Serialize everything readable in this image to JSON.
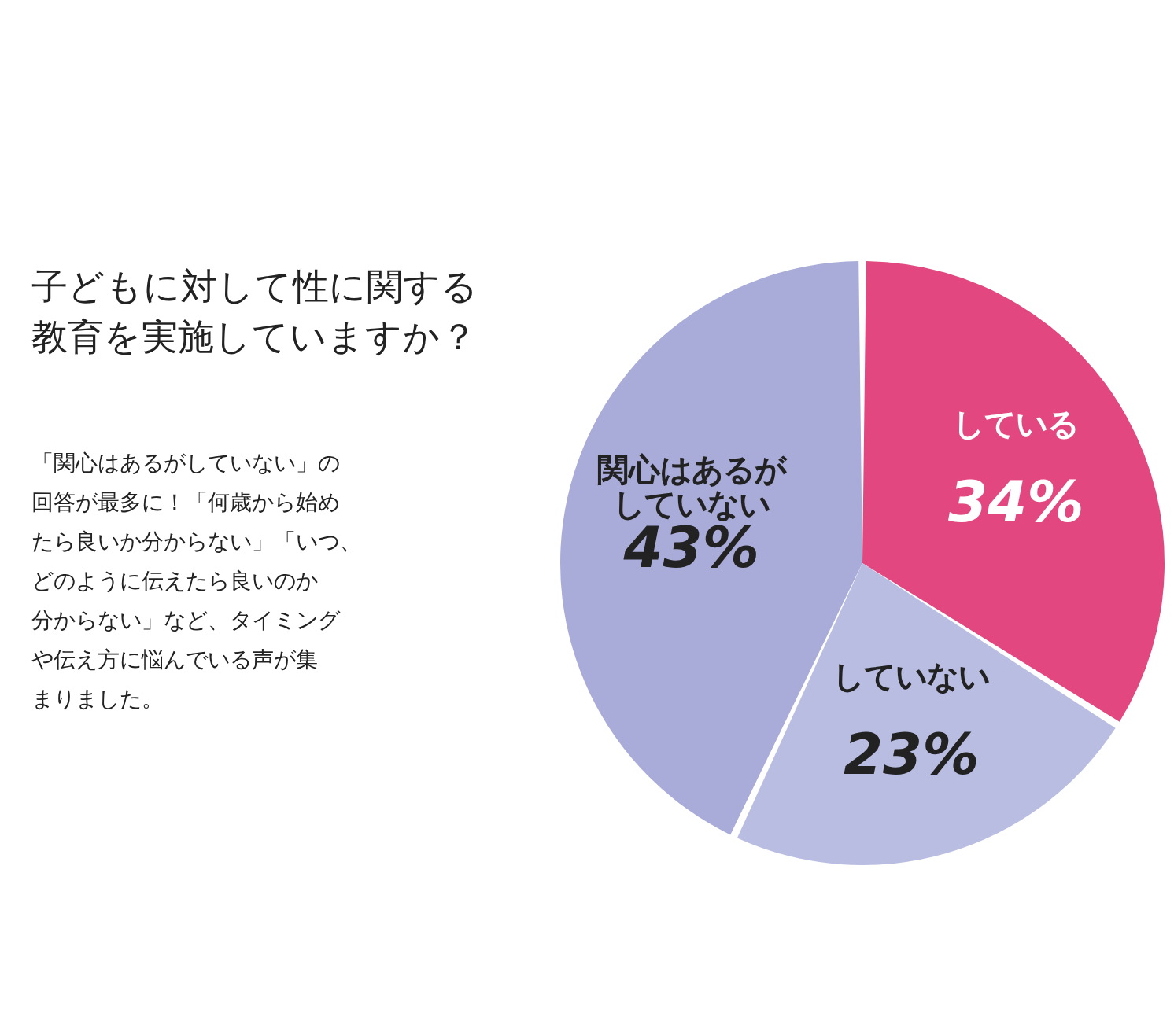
{
  "chart_data": {
    "type": "pie",
    "title": "子どもに対して性に関する教育を実施していますか？",
    "categories": [
      "している",
      "していない",
      "関心はあるがしていない"
    ],
    "values": [
      34,
      23,
      43
    ],
    "colors": [
      "#e2487f",
      "#b9bde2",
      "#a9acd8"
    ],
    "data_labels": true,
    "value_labels": [
      "34%",
      "23%",
      "43%"
    ],
    "annotations": [
      "「関心はあるがしていない」の回答が最多に！「何歳から始めたら良いか分からない」「いつ、どのように伝えたら良いのか分からない」など、タイミングや伝え方に悩んでいる声が集まりました。"
    ]
  }
}
